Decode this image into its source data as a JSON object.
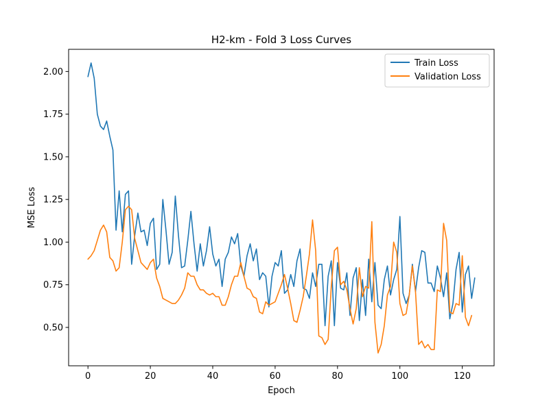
{
  "chart_data": {
    "type": "line",
    "title": "H2-km - Fold 3 Loss Curves",
    "xlabel": "Epoch",
    "ylabel": "MSE Loss",
    "xlim": [
      -6.2,
      130.2
    ],
    "ylim": [
      0.275,
      2.13
    ],
    "xticks": [
      0,
      20,
      40,
      60,
      80,
      100,
      120
    ],
    "yticks": [
      "0.50",
      "0.75",
      "1.00",
      "1.25",
      "1.50",
      "1.75",
      "2.00"
    ],
    "grid": false,
    "legend_position": "top-right",
    "colors": {
      "train": "#1f77b4",
      "validation": "#ff7f0e"
    },
    "series": [
      {
        "name": "Train Loss",
        "color": "#1f77b4",
        "values": [
          1.97,
          2.05,
          1.96,
          1.75,
          1.68,
          1.66,
          1.71,
          1.62,
          1.54,
          1.07,
          1.3,
          1.06,
          1.28,
          1.3,
          0.87,
          1.04,
          1.17,
          1.06,
          1.07,
          0.98,
          1.11,
          1.14,
          0.84,
          0.87,
          1.25,
          1.07,
          0.87,
          0.94,
          1.27,
          1.04,
          0.85,
          0.86,
          1.01,
          1.18,
          0.99,
          0.83,
          0.99,
          0.86,
          0.95,
          1.09,
          0.93,
          0.86,
          0.9,
          0.74,
          0.9,
          0.94,
          1.03,
          0.99,
          1.05,
          0.86,
          0.8,
          0.92,
          0.99,
          0.89,
          0.96,
          0.78,
          0.82,
          0.8,
          0.62,
          0.8,
          0.88,
          0.86,
          0.95,
          0.7,
          0.72,
          0.81,
          0.74,
          0.89,
          0.96,
          0.73,
          0.72,
          0.67,
          0.82,
          0.74,
          0.87,
          0.87,
          0.51,
          0.8,
          0.89,
          0.51,
          0.88,
          0.73,
          0.72,
          0.82,
          0.57,
          0.79,
          0.85,
          0.54,
          0.78,
          0.57,
          0.9,
          0.65,
          0.88,
          0.63,
          0.61,
          0.78,
          0.86,
          0.69,
          0.78,
          0.84,
          1.15,
          0.7,
          0.64,
          0.69,
          0.87,
          0.71,
          0.85,
          0.95,
          0.94,
          0.76,
          0.76,
          0.71,
          0.86,
          0.79,
          0.68,
          0.82,
          0.55,
          0.64,
          0.84,
          0.94,
          0.59,
          0.81,
          0.86,
          0.67,
          0.79
        ]
      },
      {
        "name": "Validation Loss",
        "color": "#ff7f0e",
        "values": [
          0.9,
          0.92,
          0.95,
          1.01,
          1.07,
          1.1,
          1.06,
          0.91,
          0.89,
          0.83,
          0.85,
          1.0,
          1.19,
          1.21,
          1.19,
          1.02,
          0.95,
          0.88,
          0.86,
          0.84,
          0.88,
          0.9,
          0.79,
          0.74,
          0.67,
          0.66,
          0.65,
          0.64,
          0.64,
          0.66,
          0.69,
          0.73,
          0.82,
          0.8,
          0.8,
          0.75,
          0.72,
          0.72,
          0.7,
          0.69,
          0.7,
          0.68,
          0.68,
          0.63,
          0.63,
          0.68,
          0.75,
          0.8,
          0.8,
          0.88,
          0.8,
          0.73,
          0.72,
          0.68,
          0.67,
          0.59,
          0.58,
          0.65,
          0.63,
          0.64,
          0.65,
          0.7,
          0.75,
          0.81,
          0.73,
          0.64,
          0.54,
          0.53,
          0.6,
          0.68,
          0.8,
          0.93,
          1.13,
          0.95,
          0.45,
          0.44,
          0.4,
          0.43,
          0.74,
          0.95,
          0.97,
          0.75,
          0.77,
          0.72,
          0.61,
          0.52,
          0.61,
          0.85,
          0.68,
          0.74,
          0.73,
          1.12,
          0.53,
          0.35,
          0.4,
          0.51,
          0.69,
          0.74,
          1.0,
          0.94,
          0.64,
          0.57,
          0.58,
          0.69,
          0.86,
          0.71,
          0.4,
          0.42,
          0.38,
          0.4,
          0.37,
          0.37,
          0.72,
          0.71,
          1.11,
          1.01,
          0.59,
          0.58,
          0.64,
          0.63,
          0.92,
          0.56,
          0.51,
          0.57
        ]
      }
    ]
  }
}
